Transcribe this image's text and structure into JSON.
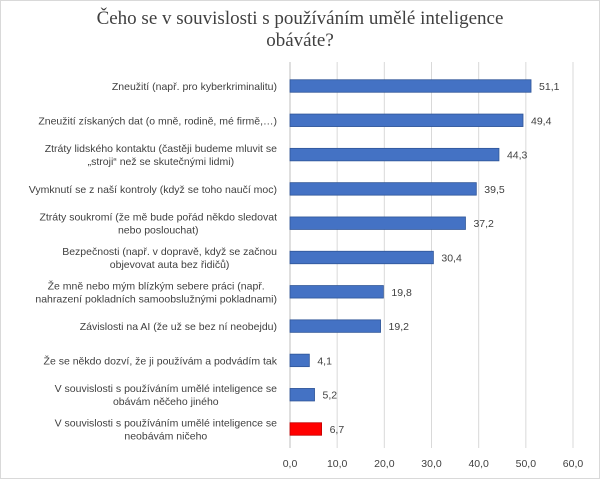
{
  "chart_data": {
    "type": "bar",
    "orientation": "horizontal",
    "title_lines": [
      "Čeho se v souvislosti s používáním umělé inteligence",
      "obáváte?"
    ],
    "categories": [
      [
        "Zneužití (např. pro kyberkriminalitu)"
      ],
      [
        "Zneužití získaných dat (o mně, rodině, mé firmě,…)"
      ],
      [
        "Ztráty lidského kontaktu (častěji budeme mluvit se",
        "„stroji“ než se skutečnými lidmi)"
      ],
      [
        "Vymknutí se z naší kontroly (když se toho naučí moc)"
      ],
      [
        "Ztráty soukromí (že mě bude pořád někdo sledovat",
        "nebo poslouchat)"
      ],
      [
        "Bezpečnosti (např. v dopravě, když se začnou",
        "objevovat auta bez řidičů)"
      ],
      [
        "Že mně nebo mým blízkým sebere práci (např.",
        "nahrazení pokladních samoobslužnými pokladnami)"
      ],
      [
        "Závislosti na AI (že už se bez ní neobejdu)"
      ],
      [
        "Že se někdo dozví, že ji používám a podvádím tak"
      ],
      [
        "V souvislosti s používáním umělé inteligence se",
        "obávám něčeho jiného"
      ],
      [
        "V souvislosti s používáním umělé inteligence se",
        "neobávám ničeho"
      ]
    ],
    "values": [
      51.1,
      49.4,
      44.3,
      39.5,
      37.2,
      30.4,
      19.8,
      19.2,
      4.1,
      5.2,
      6.7
    ],
    "value_labels": [
      "51,1",
      "49,4",
      "44,3",
      "39,5",
      "37,2",
      "30,4",
      "19,8",
      "19,2",
      "4,1",
      "5,2",
      "6,7"
    ],
    "bar_colors": [
      "#4472c4",
      "#4472c4",
      "#4472c4",
      "#4472c4",
      "#4472c4",
      "#4472c4",
      "#4472c4",
      "#4472c4",
      "#4472c4",
      "#4472c4",
      "#ff0000"
    ],
    "xlim": [
      0,
      60
    ],
    "xticks": [
      0,
      10,
      20,
      30,
      40,
      50,
      60
    ],
    "xtick_labels": [
      "0,0",
      "10,0",
      "20,0",
      "30,0",
      "40,0",
      "50,0",
      "60,0"
    ],
    "grid": true,
    "legend": "none"
  }
}
